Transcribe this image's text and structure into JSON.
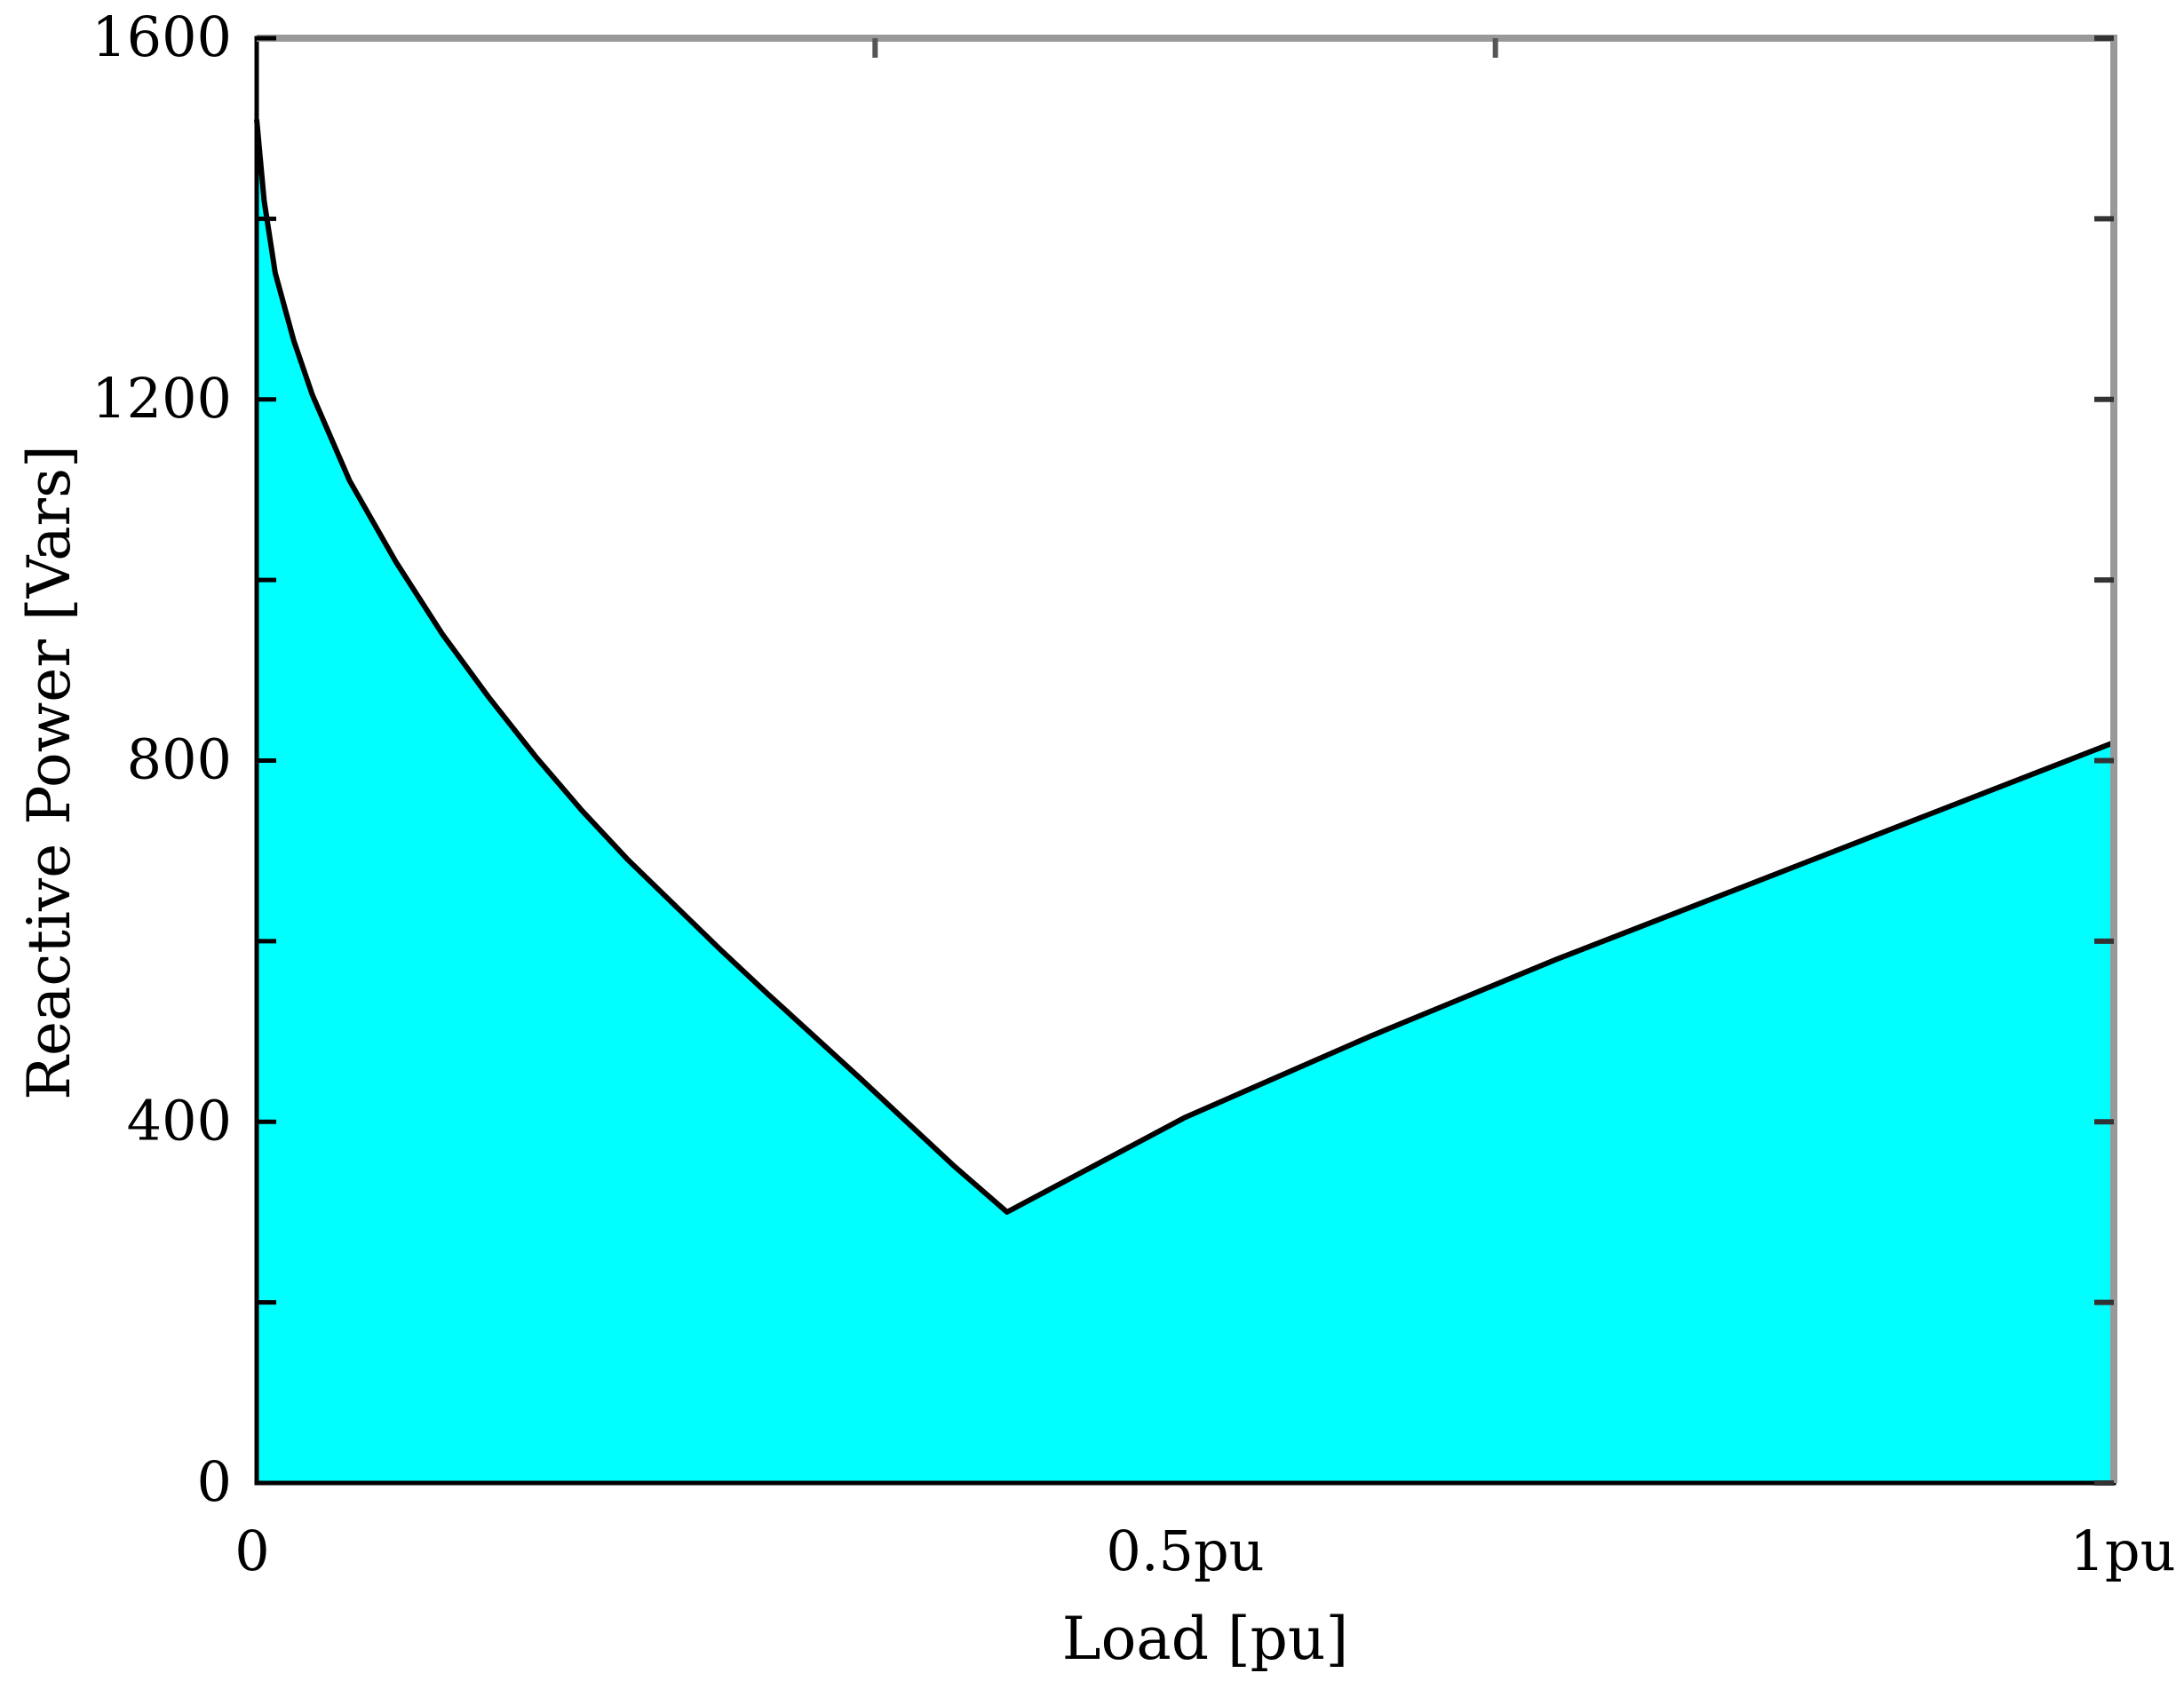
{
  "chart_data": {
    "type": "area",
    "title": "",
    "xlabel": "Load [pu]",
    "ylabel": "Reactive Power [Vars]",
    "xlim": [
      0,
      1
    ],
    "ylim": [
      0,
      1600
    ],
    "x_ticks": [
      {
        "value": 0,
        "label": "0"
      },
      {
        "value": 0.5,
        "label": "0.5pu"
      },
      {
        "value": 1,
        "label": "1pu"
      }
    ],
    "y_ticks": [
      {
        "value": 0,
        "label": "0"
      },
      {
        "value": 400,
        "label": "400"
      },
      {
        "value": 800,
        "label": "800"
      },
      {
        "value": 1200,
        "label": "1200"
      },
      {
        "value": 1600,
        "label": "1600"
      }
    ],
    "y_minor_ticks": [
      200,
      600,
      1000,
      1400
    ],
    "x_minor_ticks": [
      0.333,
      0.667
    ],
    "grid": false,
    "legend": "none",
    "series": [
      {
        "x": [
          0,
          0.004,
          0.01,
          0.02,
          0.03,
          0.05,
          0.075,
          0.1,
          0.125,
          0.15,
          0.175,
          0.2,
          0.225,
          0.25,
          0.275,
          0.3,
          0.325,
          0.35,
          0.375,
          0.404,
          0.5,
          0.6,
          0.7,
          0.8,
          0.9,
          1.0
        ],
        "y": [
          1510,
          1420,
          1340,
          1265,
          1205,
          1110,
          1020,
          940,
          870,
          805,
          745,
          690,
          640,
          590,
          542,
          495,
          448,
          400,
          352,
          300,
          405,
          495,
          580,
          660,
          740,
          820
        ],
        "color": "#00ffff",
        "line_color": "#000000"
      }
    ]
  }
}
